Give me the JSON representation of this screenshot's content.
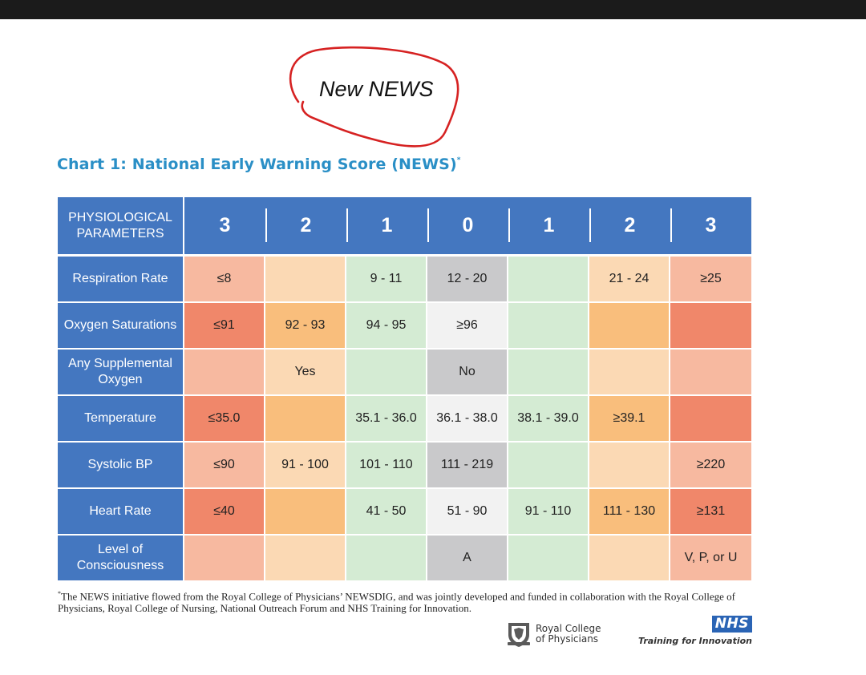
{
  "annotation": {
    "handwritten": "New NEWS"
  },
  "chart_title": "Chart 1: National Early Warning Score (NEWS)",
  "chart_title_mark": "*",
  "table": {
    "header_param": "PHYSIOLOGICAL PARAMETERS",
    "scores": [
      "3",
      "2",
      "1",
      "0",
      "1",
      "2",
      "3"
    ],
    "rows": [
      {
        "param": "Respiration Rate",
        "cells": [
          "≤8",
          "",
          "9 - 11",
          "12 - 20",
          "",
          "21 - 24",
          "≥25"
        ]
      },
      {
        "param": "Oxygen Saturations",
        "cells": [
          "≤91",
          "92 - 93",
          "94 - 95",
          "≥96",
          "",
          "",
          ""
        ]
      },
      {
        "param": "Any Supplemental Oxygen",
        "cells": [
          "",
          "Yes",
          "",
          "No",
          "",
          "",
          ""
        ]
      },
      {
        "param": "Temperature",
        "cells": [
          "≤35.0",
          "",
          "35.1 - 36.0",
          "36.1 - 38.0",
          "38.1 - 39.0",
          "≥39.1",
          ""
        ]
      },
      {
        "param": "Systolic BP",
        "cells": [
          "≤90",
          "91 - 100",
          "101 - 110",
          "111 - 219",
          "",
          "",
          "≥220"
        ]
      },
      {
        "param": "Heart Rate",
        "cells": [
          "≤40",
          "",
          "41 - 50",
          "51 - 90",
          "91 - 110",
          "111 - 130",
          "≥131"
        ]
      },
      {
        "param": "Level of Consciousness",
        "cells": [
          "",
          "",
          "",
          "A",
          "",
          "",
          "V, P, or U"
        ]
      }
    ]
  },
  "footnote": {
    "mark": "*",
    "text": "The NEWS initiative flowed from the Royal College of Physicians’ NEWSDIG, and was jointly developed and funded in collaboration with the Royal College of Physicians, Royal College of Nursing, National Outreach Forum and NHS Training for Innovation."
  },
  "logos": {
    "rcp_line1": "Royal College",
    "rcp_line2": "of Physicians",
    "nhs": "NHS",
    "nhs_tagline": "Training for Innovation"
  },
  "colors": {
    "header_blue": "#4477c0",
    "title_blue": "#2a8fc6",
    "annotation_red": "#d62222",
    "score3_strong": "#f0876a",
    "score3_light": "#f7b9a0",
    "score2_strong": "#f9be7c",
    "score2_light": "#fbd9b4",
    "score1": "#d4ebd3",
    "score0_grey": "#c9c9cb",
    "score0_white": "#f2f2f2"
  }
}
